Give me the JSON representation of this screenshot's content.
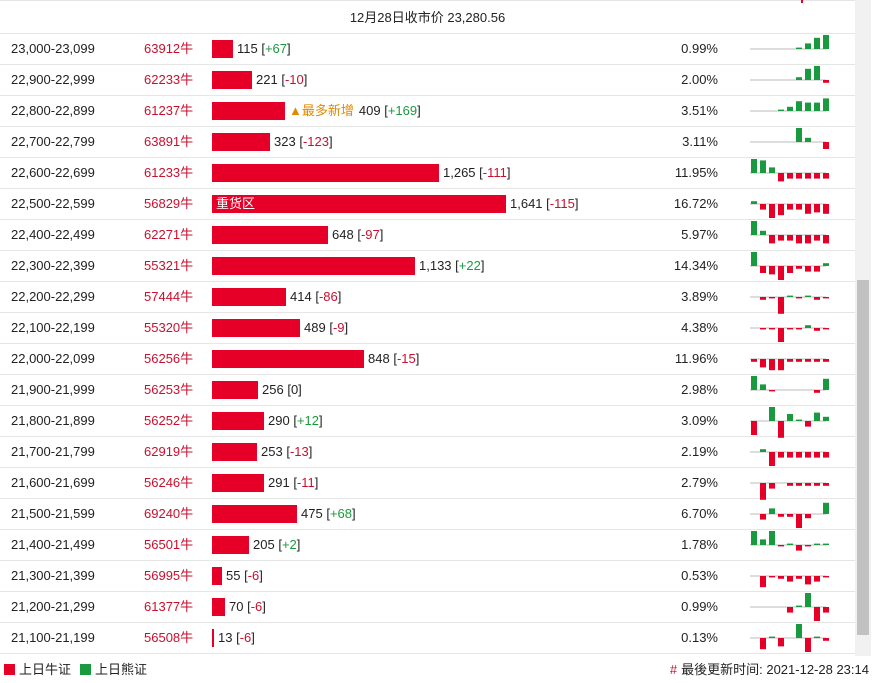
{
  "header": {
    "title": "12月28日收市价 23,280.56"
  },
  "colors": {
    "bull": "#e60028",
    "bear": "#1a9a3e",
    "accent": "#e08a00"
  },
  "rows": [
    {
      "range": "23,000-23,099",
      "code": "63912牛",
      "qty": 115,
      "qty_text": "115",
      "change": "+67",
      "pct": "0.99%",
      "spark": [
        0,
        0,
        0,
        0,
        0,
        1,
        4,
        8,
        10
      ]
    },
    {
      "range": "22,900-22,999",
      "code": "62233牛",
      "qty": 221,
      "qty_text": "221",
      "change": "-10",
      "pct": "2.00%",
      "spark": [
        0,
        0,
        0,
        0,
        0,
        2,
        8,
        10,
        -2
      ]
    },
    {
      "range": "22,800-22,899",
      "code": "61237牛",
      "badge": "▲最多新增",
      "qty": 409,
      "qty_text": "409",
      "change": "+169",
      "pct": "3.51%",
      "spark": [
        0,
        0,
        0,
        1,
        3,
        7,
        6,
        6,
        9
      ]
    },
    {
      "range": "22,700-22,799",
      "code": "63891牛",
      "qty": 323,
      "qty_text": "323",
      "change": "-123",
      "pct": "3.11%",
      "spark": [
        0,
        0,
        0,
        0,
        0,
        10,
        3,
        0,
        -5
      ]
    },
    {
      "range": "22,600-22,699",
      "code": "61233牛",
      "qty": 1265,
      "qty_text": "1,265",
      "change": "-111",
      "pct": "11.95%",
      "spark": [
        10,
        9,
        4,
        -6,
        -4,
        -4,
        -4,
        -4,
        -4
      ]
    },
    {
      "range": "22,500-22,599",
      "code": "56829牛",
      "bar_tag": "重货区",
      "qty": 1641,
      "qty_text": "1,641",
      "change": "-115",
      "pct": "16.72%",
      "spark": [
        2,
        -4,
        -10,
        -8,
        -4,
        -4,
        -7,
        -6,
        -7
      ]
    },
    {
      "range": "22,400-22,499",
      "code": "62271牛",
      "qty": 648,
      "qty_text": "648",
      "change": "-97",
      "pct": "5.97%",
      "spark": [
        10,
        3,
        -6,
        -4,
        -4,
        -6,
        -6,
        -4,
        -6
      ]
    },
    {
      "range": "22,300-22,399",
      "code": "55321牛",
      "qty": 1133,
      "qty_text": "1,133",
      "change": "+22",
      "pct": "14.34%",
      "spark": [
        10,
        -5,
        -6,
        -10,
        -5,
        -2,
        -4,
        -4,
        2
      ]
    },
    {
      "range": "22,200-22,299",
      "code": "57444牛",
      "qty": 414,
      "qty_text": "414",
      "change": "-86",
      "pct": "3.89%",
      "spark": [
        0,
        -2,
        -1,
        -12,
        1,
        -1,
        1,
        -2,
        -1
      ]
    },
    {
      "range": "22,100-22,199",
      "code": "55320牛",
      "qty": 489,
      "qty_text": "489",
      "change": "-9",
      "pct": "4.38%",
      "spark": [
        0,
        -1,
        -1,
        -10,
        -1,
        -1,
        2,
        -2,
        -1
      ]
    },
    {
      "range": "22,000-22,099",
      "code": "56256牛",
      "qty": 848,
      "qty_text": "848",
      "change": "-15",
      "pct": "11.96%",
      "spark": [
        -2,
        -6,
        -8,
        -8,
        -2,
        -2,
        -2,
        -2,
        -2
      ]
    },
    {
      "range": "21,900-21,999",
      "code": "56253牛",
      "qty": 256,
      "qty_text": "256",
      "change": "0",
      "pct": "2.98%",
      "spark": [
        10,
        4,
        -1,
        0,
        0,
        0,
        0,
        -2,
        8
      ]
    },
    {
      "range": "21,800-21,899",
      "code": "56252牛",
      "qty": 290,
      "qty_text": "290",
      "change": "+12",
      "pct": "3.09%",
      "spark": [
        -10,
        0,
        10,
        -12,
        5,
        1,
        -4,
        6,
        3
      ]
    },
    {
      "range": "21,700-21,799",
      "code": "62919牛",
      "qty": 253,
      "qty_text": "253",
      "change": "-13",
      "pct": "2.19%",
      "spark": [
        0,
        2,
        -10,
        -4,
        -4,
        -4,
        -4,
        -4,
        -4
      ]
    },
    {
      "range": "21,600-21,699",
      "code": "56246牛",
      "qty": 291,
      "qty_text": "291",
      "change": "-11",
      "pct": "2.79%",
      "spark": [
        0,
        -12,
        -4,
        0,
        -2,
        -2,
        -2,
        -2,
        -2
      ]
    },
    {
      "range": "21,500-21,599",
      "code": "69240牛",
      "qty": 475,
      "qty_text": "475",
      "change": "+68",
      "pct": "6.70%",
      "spark": [
        0,
        -4,
        4,
        -2,
        -2,
        -10,
        -3,
        0,
        8
      ]
    },
    {
      "range": "21,400-21,499",
      "code": "56501牛",
      "qty": 205,
      "qty_text": "205",
      "change": "+2",
      "pct": "1.78%",
      "spark": [
        10,
        4,
        10,
        -1,
        1,
        -4,
        -1,
        1,
        1
      ]
    },
    {
      "range": "21,300-21,399",
      "code": "56995牛",
      "qty": 55,
      "qty_text": "55",
      "change": "-6",
      "pct": "0.53%",
      "spark": [
        0,
        -8,
        -1,
        -2,
        -4,
        -2,
        -6,
        -4,
        -1
      ]
    },
    {
      "range": "21,200-21,299",
      "code": "61377牛",
      "qty": 70,
      "qty_text": "70",
      "change": "-6",
      "pct": "0.99%",
      "spark": [
        0,
        0,
        0,
        0,
        -4,
        1,
        10,
        -10,
        -4
      ]
    },
    {
      "range": "21,100-21,199",
      "code": "56508牛",
      "qty": 13,
      "qty_text": "13",
      "change": "-6",
      "pct": "0.13%",
      "spark": [
        0,
        -8,
        1,
        -6,
        0,
        10,
        -10,
        1,
        -2
      ]
    }
  ],
  "footer": {
    "legend_bull": "上日牛证",
    "legend_bear": "上日熊证",
    "updated_label": "最後更新时间:",
    "updated_time": "2021-12-28 23:14"
  },
  "icons": {
    "bull_square": "red-square-icon",
    "bear_square": "green-square-icon",
    "hash": "hash-icon"
  }
}
